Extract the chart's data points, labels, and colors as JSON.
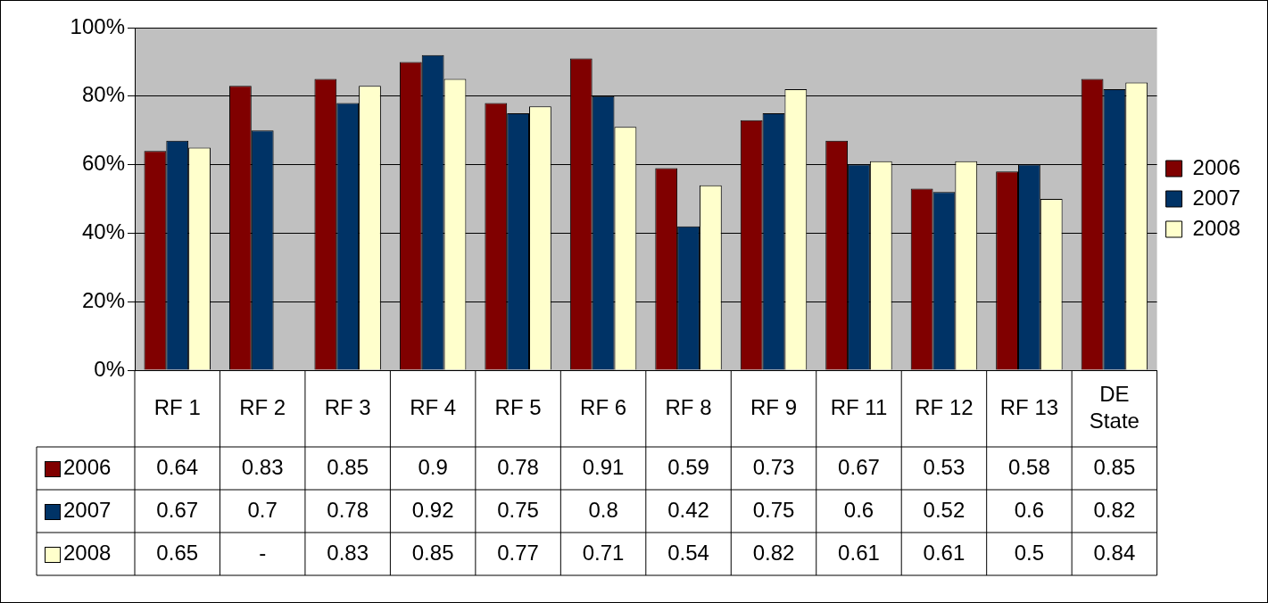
{
  "chart_data": {
    "type": "bar",
    "categories": [
      "RF 1",
      "RF 2",
      "RF 3",
      "RF 4",
      "RF 5",
      "RF 6",
      "RF 8",
      "RF 9",
      "RF 11",
      "RF 12",
      "RF 13",
      "DE State"
    ],
    "series": [
      {
        "name": "2006",
        "color": "#800000",
        "values": [
          0.64,
          0.83,
          0.85,
          0.9,
          0.78,
          0.91,
          0.59,
          0.73,
          0.67,
          0.53,
          0.58,
          0.85
        ],
        "value_labels": [
          "0.64",
          "0.83",
          "0.85",
          "0.9",
          "0.78",
          "0.91",
          "0.59",
          "0.73",
          "0.67",
          "0.53",
          "0.58",
          "0.85"
        ]
      },
      {
        "name": "2007",
        "color": "#003366",
        "values": [
          0.67,
          0.7,
          0.78,
          0.92,
          0.75,
          0.8,
          0.42,
          0.75,
          0.6,
          0.52,
          0.6,
          0.82
        ],
        "value_labels": [
          "0.67",
          "0.7",
          "0.78",
          "0.92",
          "0.75",
          "0.8",
          "0.42",
          "0.75",
          "0.6",
          "0.52",
          "0.6",
          "0.82"
        ]
      },
      {
        "name": "2008",
        "color": "#ffffcc",
        "values": [
          0.65,
          null,
          0.83,
          0.85,
          0.77,
          0.71,
          0.54,
          0.82,
          0.61,
          0.61,
          0.5,
          0.84
        ],
        "value_labels": [
          "0.65",
          "-",
          "0.83",
          "0.85",
          "0.77",
          "0.71",
          "0.54",
          "0.82",
          "0.61",
          "0.61",
          "0.5",
          "0.84"
        ]
      }
    ],
    "ylim": [
      0,
      1
    ],
    "yticks": [
      {
        "value": 0,
        "label": "0%"
      },
      {
        "value": 0.2,
        "label": "20%"
      },
      {
        "value": 0.4,
        "label": "40%"
      },
      {
        "value": 0.6,
        "label": "60%"
      },
      {
        "value": 0.8,
        "label": "80%"
      },
      {
        "value": 1,
        "label": "100%"
      }
    ],
    "grid": "y",
    "legend": "right"
  }
}
